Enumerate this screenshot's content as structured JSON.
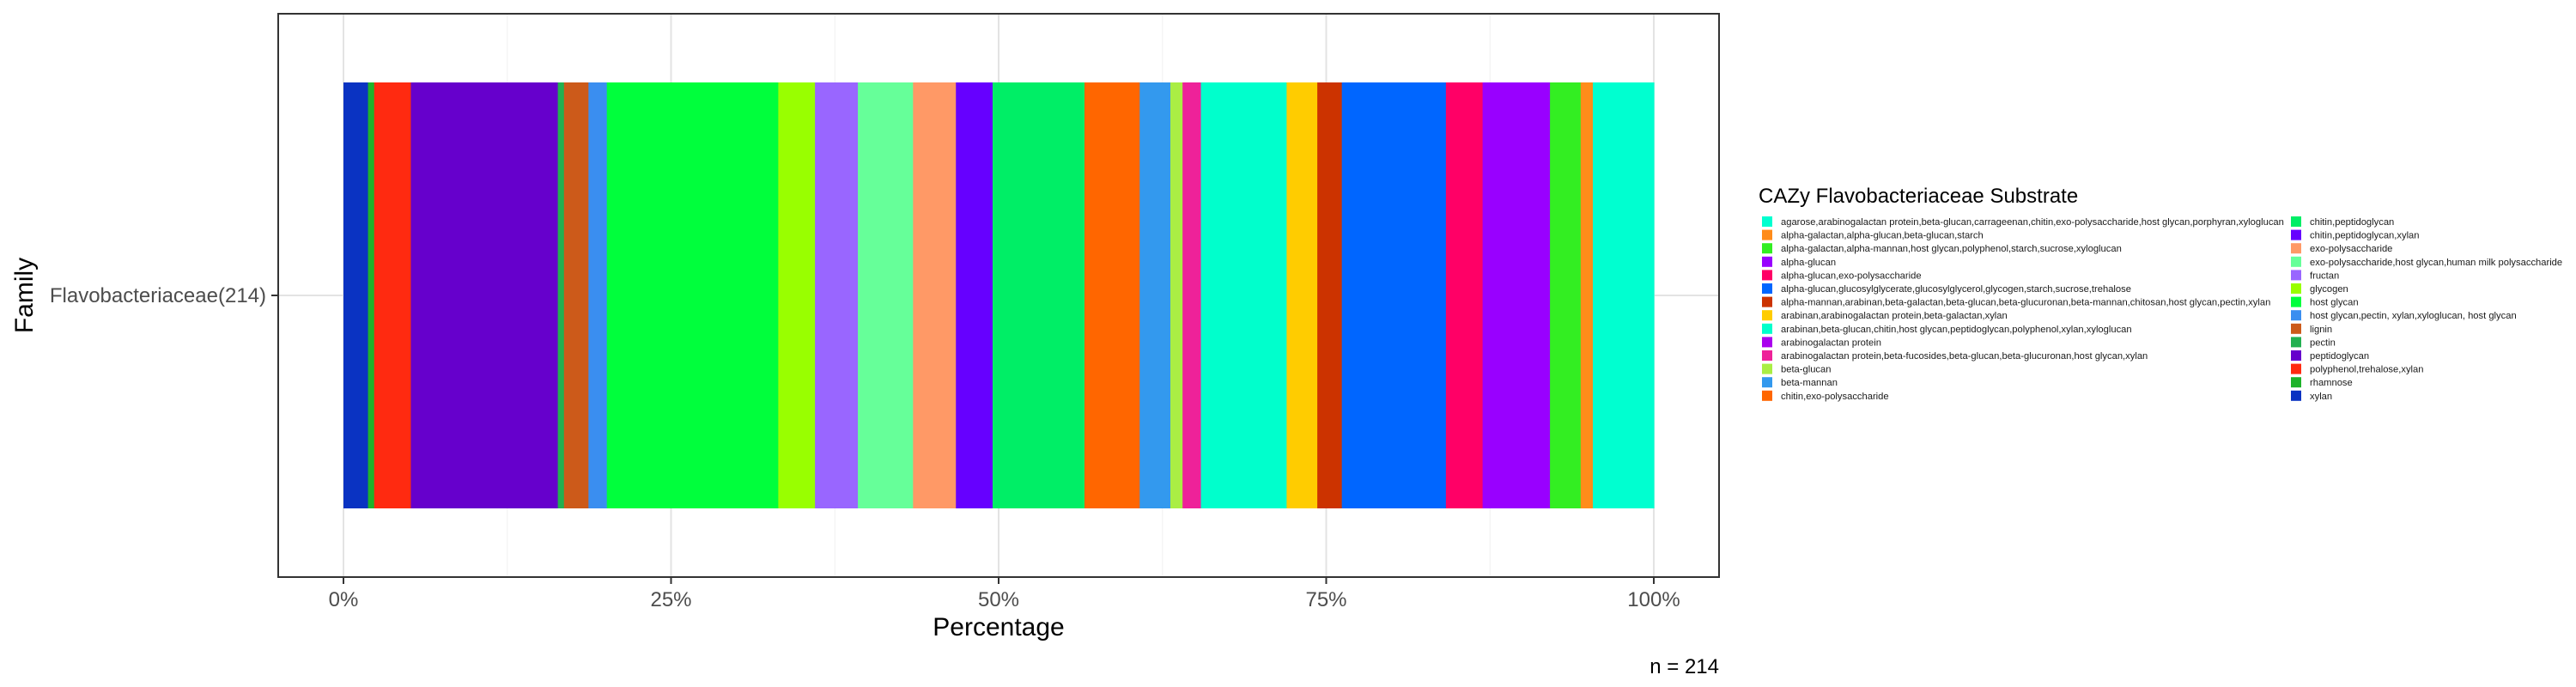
{
  "chart_data": {
    "type": "bar",
    "orientation": "horizontal",
    "stacked": true,
    "categories": [
      "Flavobacteriaceae(214)"
    ],
    "xlabel": "Percentage",
    "ylabel": "Family",
    "xlim": [
      0,
      100
    ],
    "x_ticks": [
      "0%",
      "25%",
      "50%",
      "75%",
      "100%"
    ],
    "grid": true,
    "legend_title": "CAZy Flavobacteriaceae Substrate",
    "legend_position": "right",
    "note": "n = 214",
    "segments": [
      {
        "name": "xylan",
        "value": 1.87,
        "color": "#0a33c2"
      },
      {
        "name": "rhamnose",
        "value": 0.47,
        "color": "#1eb32a"
      },
      {
        "name": "polyphenol,trehalose,xylan",
        "value": 2.8,
        "color": "#ff2a10"
      },
      {
        "name": "peptidoglycan",
        "value": 11.21,
        "color": "#6600cc"
      },
      {
        "name": "pectin",
        "value": 0.47,
        "color": "#22b050"
      },
      {
        "name": "lignin",
        "value": 1.87,
        "color": "#cc5a1a"
      },
      {
        "name": "host glycan,pectin, xylan,xyloglucan, host glycan",
        "value": 1.4,
        "color": "#3a8ef0"
      },
      {
        "name": "host glycan",
        "value": 13.08,
        "color": "#00ff3c"
      },
      {
        "name": "glycogen",
        "value": 2.8,
        "color": "#99ff00"
      },
      {
        "name": "fructan",
        "value": 3.27,
        "color": "#9966ff"
      },
      {
        "name": "exo-polysaccharide,host glycan,human milk polysaccharide",
        "value": 4.21,
        "color": "#66ff99"
      },
      {
        "name": "exo-polysaccharide",
        "value": 3.27,
        "color": "#ff9966"
      },
      {
        "name": "chitin,peptidoglycan,xylan",
        "value": 2.8,
        "color": "#6600ff"
      },
      {
        "name": "chitin,peptidoglycan",
        "value": 7.01,
        "color": "#00ee66"
      },
      {
        "name": "chitin,exo-polysaccharide",
        "value": 4.21,
        "color": "#ff6600"
      },
      {
        "name": "beta-mannan",
        "value": 2.34,
        "color": "#3399ee"
      },
      {
        "name": "beta-glucan",
        "value": 0.93,
        "color": "#aaee44"
      },
      {
        "name": "arabinogalactan protein,beta-fucosides,beta-glucan,beta-glucuronan,host glycan,xylan",
        "value": 1.4,
        "color": "#ee2299"
      },
      {
        "name": "arabinan,beta-glucan,chitin,host glycan,peptidoglycan,polyphenol,xylan,xyloglucan",
        "value": 6.54,
        "color": "#00ffcc"
      },
      {
        "name": "arabinan,arabinogalactan protein,beta-galactan,xylan",
        "value": 2.34,
        "color": "#ffcc00"
      },
      {
        "name": "alpha-mannan,arabinan,beta-galactan,beta-glucan,beta-glucuronan,beta-mannan,chitosan,host glycan,pectin,xylan",
        "value": 1.87,
        "color": "#cc3300"
      },
      {
        "name": "alpha-glucan,glucosylglycerate,glucosylglycerol,glycogen,starch,sucrose,trehalose",
        "value": 7.94,
        "color": "#0066ff"
      },
      {
        "name": "alpha-glucan,exo-polysaccharide",
        "value": 2.8,
        "color": "#ff0066"
      },
      {
        "name": "alpha-glucan",
        "value": 5.14,
        "color": "#9900ff"
      },
      {
        "name": "alpha-galactan,alpha-mannan,host glycan,polyphenol,starch,sucrose,xyloglucan",
        "value": 2.34,
        "color": "#33ee22"
      },
      {
        "name": "alpha-galactan,alpha-glucan,beta-glucan,starch",
        "value": 0.93,
        "color": "#ff8c1a"
      },
      {
        "name": "agarose,arabinogalactan protein,beta-glucan,carrageenan,chitin,exo-polysaccharide,host glycan,porphyran,xyloglucan",
        "value": 4.65,
        "color": "#00ffd0"
      }
    ],
    "legend": [
      {
        "label": "agarose,arabinogalactan protein,beta-glucan,carrageenan,chitin,exo-polysaccharide,host glycan,porphyran,xyloglucan",
        "color": "#00ffd0"
      },
      {
        "label": "alpha-galactan,alpha-glucan,beta-glucan,starch",
        "color": "#ff8c1a"
      },
      {
        "label": "alpha-galactan,alpha-mannan,host glycan,polyphenol,starch,sucrose,xyloglucan",
        "color": "#33ee22"
      },
      {
        "label": "alpha-glucan",
        "color": "#9900ff"
      },
      {
        "label": "alpha-glucan,exo-polysaccharide",
        "color": "#ff0066"
      },
      {
        "label": "alpha-glucan,glucosylglycerate,glucosylglycerol,glycogen,starch,sucrose,trehalose",
        "color": "#0066ff"
      },
      {
        "label": "alpha-mannan,arabinan,beta-galactan,beta-glucan,beta-glucuronan,beta-mannan,chitosan,host glycan,pectin,xylan",
        "color": "#cc3300"
      },
      {
        "label": "arabinan,arabinogalactan protein,beta-galactan,xylan",
        "color": "#ffcc00"
      },
      {
        "label": "arabinan,beta-glucan,chitin,host glycan,peptidoglycan,polyphenol,xylan,xyloglucan",
        "color": "#00ffcc"
      },
      {
        "label": "arabinogalactan protein",
        "color": "#aa00ee"
      },
      {
        "label": "arabinogalactan protein,beta-fucosides,beta-glucan,beta-glucuronan,host glycan,xylan",
        "color": "#ee2299"
      },
      {
        "label": "beta-glucan",
        "color": "#aaee44"
      },
      {
        "label": "beta-mannan",
        "color": "#3399ee"
      },
      {
        "label": "chitin,exo-polysaccharide",
        "color": "#ff6600"
      },
      {
        "label": "chitin,peptidoglycan",
        "color": "#00ee66"
      },
      {
        "label": "chitin,peptidoglycan,xylan",
        "color": "#6600ff"
      },
      {
        "label": "exo-polysaccharide",
        "color": "#ff9966"
      },
      {
        "label": "exo-polysaccharide,host glycan,human milk polysaccharide",
        "color": "#66ff99"
      },
      {
        "label": "fructan",
        "color": "#9966ff"
      },
      {
        "label": "glycogen",
        "color": "#99ff00"
      },
      {
        "label": "host glycan",
        "color": "#00ff3c"
      },
      {
        "label": "host glycan,pectin, xylan,xyloglucan, host glycan",
        "color": "#3a8ef0"
      },
      {
        "label": "lignin",
        "color": "#cc5a1a"
      },
      {
        "label": "pectin",
        "color": "#22b050"
      },
      {
        "label": "peptidoglycan",
        "color": "#6600cc"
      },
      {
        "label": "polyphenol,trehalose,xylan",
        "color": "#ff2a10"
      },
      {
        "label": "rhamnose",
        "color": "#1eb32a"
      },
      {
        "label": "xylan",
        "color": "#0a33c2"
      }
    ]
  }
}
